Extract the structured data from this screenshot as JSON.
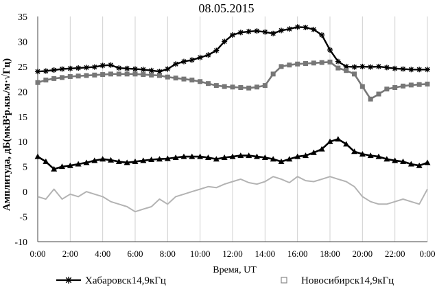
{
  "chart_data": {
    "type": "line",
    "title": "08.05.2015",
    "xlabel": "Время, UT",
    "ylabel": "Амплитуда, дБ(мкВ²p.кв./м·√Гц)",
    "xlim": [
      0,
      24
    ],
    "ylim": [
      -10,
      35
    ],
    "y_ticks": [
      -10,
      -5,
      0,
      5,
      10,
      15,
      20,
      25,
      30,
      35
    ],
    "x_ticks": [
      "0:00",
      "2:00",
      "4:00",
      "6:00",
      "8:00",
      "10:00",
      "12:00",
      "14:00",
      "16:00",
      "18:00",
      "20:00",
      "22:00",
      "0:00"
    ],
    "grid": "vertical",
    "legend": "bottom",
    "series": [
      {
        "name": "Хабаровск14,9кГц",
        "marker": "star",
        "color": "#000000",
        "x": [
          0,
          0.5,
          1,
          1.5,
          2,
          2.5,
          3,
          3.5,
          4,
          4.5,
          5,
          5.5,
          6,
          6.5,
          7,
          7.5,
          8,
          8.5,
          9,
          9.5,
          10,
          10.5,
          11,
          11.5,
          12,
          12.5,
          13,
          13.5,
          14,
          14.5,
          15,
          15.5,
          16,
          16.5,
          17,
          17.5,
          18,
          18.5,
          19,
          19.5,
          20,
          20.5,
          21,
          21.5,
          22,
          22.5,
          23,
          23.5,
          24
        ],
        "values": [
          24,
          24.1,
          24.3,
          24.5,
          24.6,
          24.7,
          24.8,
          24.9,
          25.2,
          25.3,
          24.7,
          24.6,
          24.5,
          24.4,
          24.2,
          24,
          24.5,
          25.5,
          26,
          26.3,
          26.8,
          27.3,
          28.2,
          30,
          31.3,
          31.8,
          32,
          32.1,
          31.9,
          31.6,
          32.2,
          32.5,
          32.9,
          32.8,
          32.4,
          31.3,
          28.3,
          26,
          25,
          24.9,
          25,
          24.9,
          25,
          24.8,
          24.6,
          24.5,
          24.4,
          24.4,
          24.4
        ]
      },
      {
        "name": "Новосибирск14,9кГц",
        "marker": "square",
        "color": "#777777",
        "x": [
          0,
          0.5,
          1,
          1.5,
          2,
          2.5,
          3,
          3.5,
          4,
          4.5,
          5,
          5.5,
          6,
          6.5,
          7,
          7.5,
          8,
          8.5,
          9,
          9.5,
          10,
          10.5,
          11,
          11.5,
          12,
          12.5,
          13,
          13.5,
          14,
          14.5,
          15,
          15.5,
          16,
          16.5,
          17,
          17.5,
          18,
          18.5,
          19,
          19.5,
          20,
          20.5,
          21,
          21.5,
          22,
          22.5,
          23,
          23.5,
          24
        ],
        "values": [
          21.8,
          22.3,
          22.6,
          22.8,
          23,
          23.1,
          23.2,
          23.3,
          23.4,
          23.5,
          23.5,
          23.5,
          23.5,
          23.4,
          23.3,
          23.2,
          22.9,
          22.7,
          22.5,
          22.3,
          22,
          21.6,
          21.2,
          21,
          20.9,
          20.8,
          20.7,
          20.9,
          21.2,
          23.5,
          25,
          25.3,
          25.5,
          25.6,
          25.7,
          25.8,
          25.9,
          24.7,
          24.2,
          23.5,
          21,
          18.5,
          19.5,
          20.5,
          20.8,
          21.1,
          21.3,
          21.4,
          21.5
        ]
      },
      {
        "name": "",
        "marker": "triangle",
        "color": "#000000",
        "x": [
          0,
          0.5,
          1,
          1.5,
          2,
          2.5,
          3,
          3.5,
          4,
          4.5,
          5,
          5.5,
          6,
          6.5,
          7,
          7.5,
          8,
          8.5,
          9,
          9.5,
          10,
          10.5,
          11,
          11.5,
          12,
          12.5,
          13,
          13.5,
          14,
          14.5,
          15,
          15.5,
          16,
          16.5,
          17,
          17.5,
          18,
          18.5,
          19,
          19.5,
          20,
          20.5,
          21,
          21.5,
          22,
          22.5,
          23,
          23.5,
          24
        ],
        "values": [
          7,
          6,
          4.5,
          5,
          5.2,
          5.5,
          5.8,
          6.2,
          6.5,
          6.3,
          6,
          5.8,
          6,
          6.2,
          6.4,
          6.5,
          6.6,
          6.8,
          7,
          7,
          7,
          6.8,
          6.5,
          6.8,
          7,
          7.2,
          7.2,
          7,
          6.8,
          6.5,
          6,
          6.5,
          7,
          7.2,
          7.8,
          8.5,
          10,
          10.5,
          9.5,
          8,
          7.5,
          7.2,
          7,
          6.5,
          6.2,
          6,
          5.5,
          5.2,
          5.8
        ]
      },
      {
        "name": "",
        "marker": "none",
        "color": "#b3b3b3",
        "x": [
          0,
          0.5,
          1,
          1.5,
          2,
          2.5,
          3,
          3.5,
          4,
          4.5,
          5,
          5.5,
          6,
          6.5,
          7,
          7.5,
          8,
          8.5,
          9,
          9.5,
          10,
          10.5,
          11,
          11.5,
          12,
          12.5,
          13,
          13.5,
          14,
          14.5,
          15,
          15.5,
          16,
          16.5,
          17,
          17.5,
          18,
          18.5,
          19,
          19.5,
          20,
          20.5,
          21,
          21.5,
          22,
          22.5,
          23,
          23.5,
          24
        ],
        "values": [
          -1,
          -1.5,
          0.5,
          -1.5,
          -0.5,
          -1,
          0,
          -0.5,
          -1,
          -2,
          -2.5,
          -3,
          -4,
          -3.5,
          -3,
          -1.5,
          -2.5,
          -1,
          -0.5,
          0,
          0.5,
          1,
          0.8,
          1.5,
          2,
          2.5,
          1.8,
          1.5,
          2,
          3,
          2.5,
          1.8,
          3,
          2.2,
          2,
          2.5,
          3,
          2.5,
          2,
          1,
          -1,
          -2,
          -2.5,
          -2.5,
          -2,
          -1.5,
          -2,
          -2.5,
          0.5
        ]
      }
    ]
  }
}
